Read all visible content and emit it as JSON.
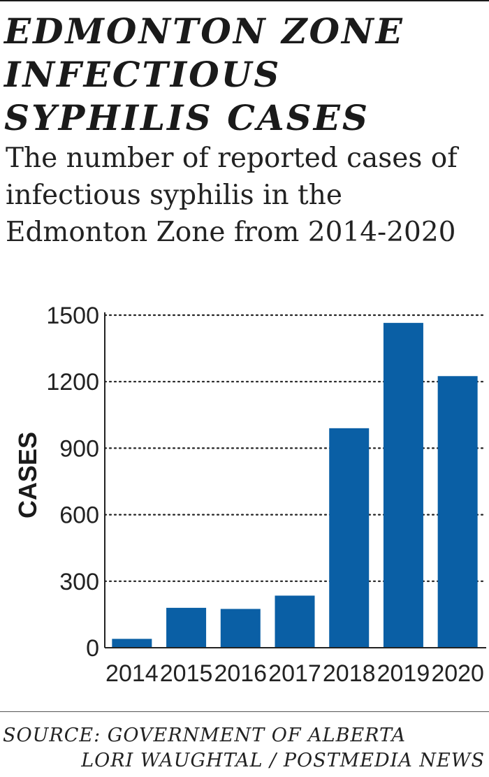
{
  "header": {
    "title": "EDMONTON ZONE INFECTIOUS SYPHILIS CASES",
    "subtitle": "The number of reported cases of infectious syphilis in the Edmonton Zone from 2014-2020"
  },
  "chart_data": {
    "type": "bar",
    "title": "EDMONTON ZONE INFECTIOUS SYPHILIS CASES",
    "subtitle": "The number of reported cases of infectious syphilis in the Edmonton Zone from 2014-2020",
    "xlabel": "",
    "ylabel": "CASES",
    "categories": [
      "2014",
      "2015",
      "2016",
      "2017",
      "2018",
      "2019",
      "2020"
    ],
    "values": [
      40,
      180,
      175,
      235,
      990,
      1465,
      1225
    ],
    "ylim": [
      0,
      1500
    ],
    "yticks": [
      0,
      300,
      600,
      900,
      1200,
      1500
    ],
    "grid": "dotted horizontal",
    "legend": "none",
    "bar_color": "#0a5fa5"
  },
  "footer": {
    "source": "SOURCE: GOVERNMENT OF ALBERTA",
    "byline": "LORI WAUGHTAL / POSTMEDIA NEWS"
  }
}
